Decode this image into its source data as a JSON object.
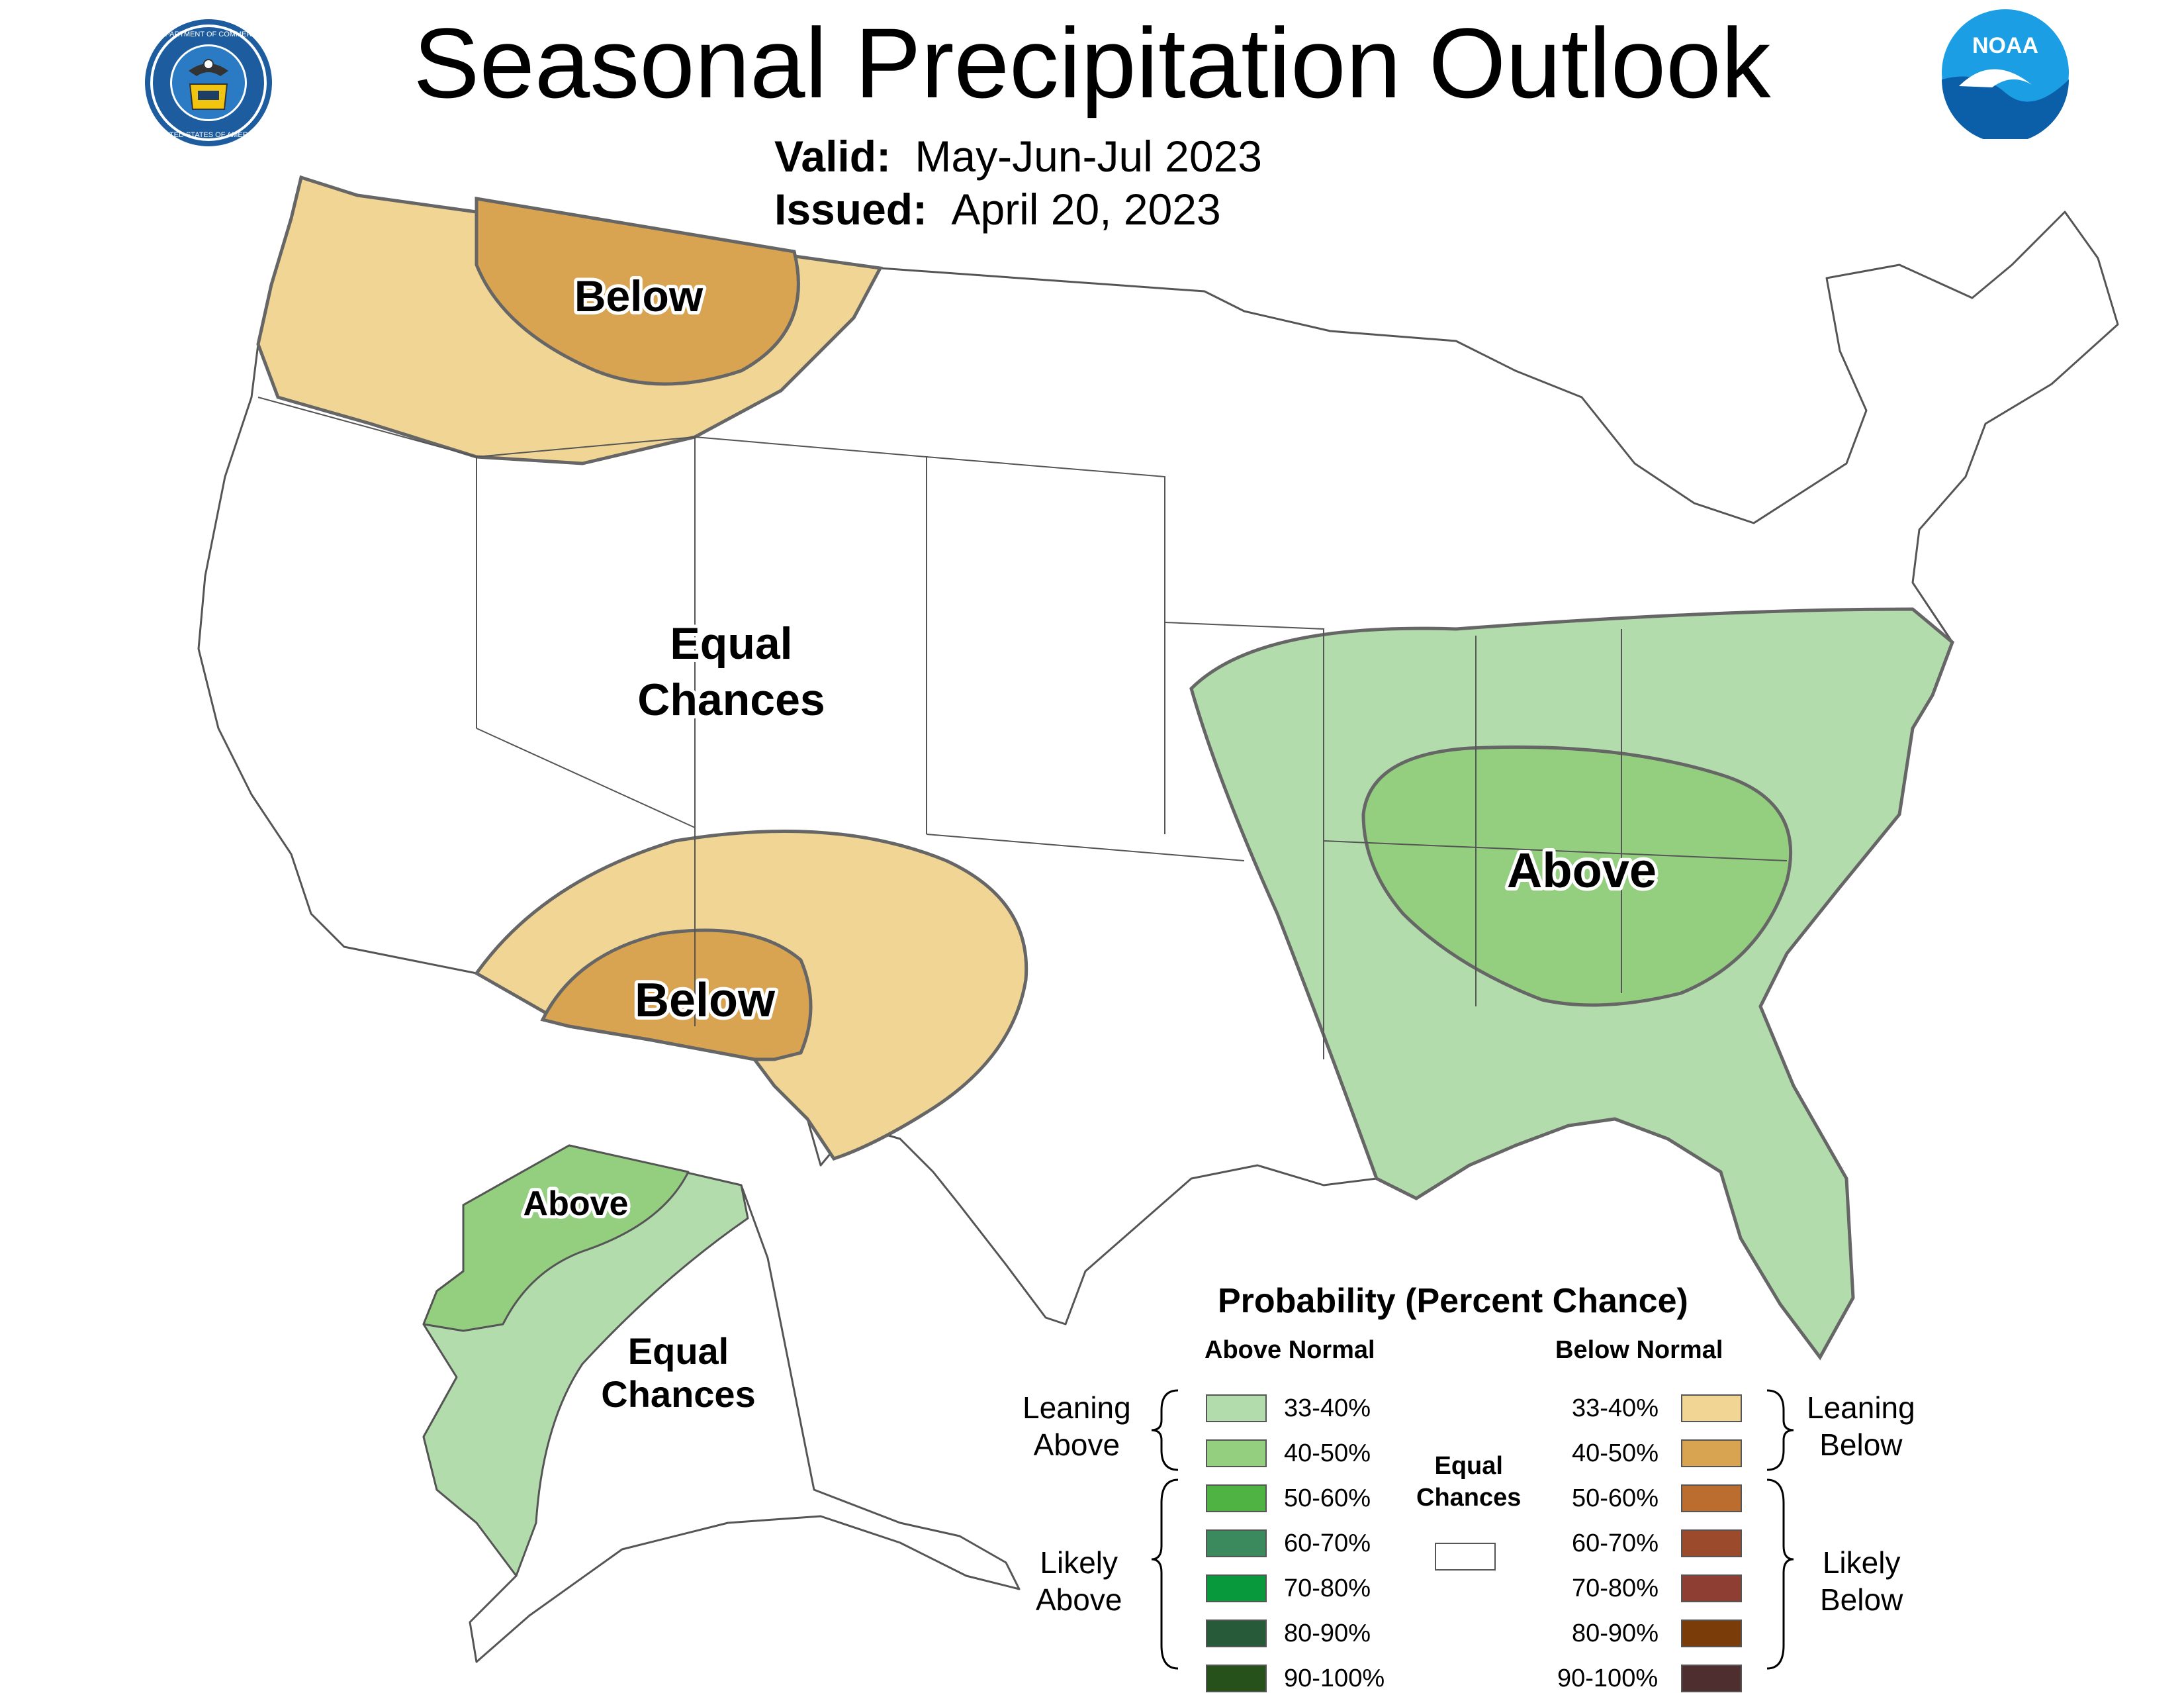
{
  "header": {
    "title": "Seasonal Precipitation Outlook",
    "valid_label": "Valid:",
    "valid_value": "May-Jun-Jul 2023",
    "issued_label": "Issued:",
    "issued_value": "April 20, 2023"
  },
  "logos": {
    "left": "department-of-commerce-seal",
    "left_text": "DEPARTMENT OF COMMERCE · UNITED STATES OF AMERICA",
    "right": "noaa-logo",
    "right_text": "NOAA"
  },
  "map_labels": {
    "nw_below": "Below",
    "sw_below": "Below",
    "ec_line1": "Equal",
    "ec_line2": "Chances",
    "se_above": "Above",
    "ak_above": "Above",
    "ak_ec_line1": "Equal",
    "ak_ec_line2": "Chances"
  },
  "legend": {
    "title": "Probability (Percent Chance)",
    "above_header": "Above Normal",
    "below_header": "Below Normal",
    "equal_line1": "Equal",
    "equal_line2": "Chances",
    "leaning_above_1": "Leaning",
    "leaning_above_2": "Above",
    "likely_above_1": "Likely",
    "likely_above_2": "Above",
    "leaning_below_1": "Leaning",
    "leaning_below_2": "Below",
    "likely_below_1": "Likely",
    "likely_below_2": "Below",
    "above_items": [
      {
        "range": "33-40%",
        "color": "#b3dcad"
      },
      {
        "range": "40-50%",
        "color": "#93cf7f"
      },
      {
        "range": "50-60%",
        "color": "#4fb343"
      },
      {
        "range": "60-70%",
        "color": "#3a8a5e"
      },
      {
        "range": "70-80%",
        "color": "#08993d"
      },
      {
        "range": "80-90%",
        "color": "#275a38"
      },
      {
        "range": "90-100%",
        "color": "#27511a"
      }
    ],
    "below_items": [
      {
        "range": "33-40%",
        "color": "#f0d595"
      },
      {
        "range": "40-50%",
        "color": "#d8a452"
      },
      {
        "range": "50-60%",
        "color": "#bb6d30"
      },
      {
        "range": "60-70%",
        "color": "#9b4a2b"
      },
      {
        "range": "70-80%",
        "color": "#8f3e34"
      },
      {
        "range": "80-90%",
        "color": "#7a3d0a"
      },
      {
        "range": "90-100%",
        "color": "#4e2e2e"
      }
    ],
    "equal_color": "#ffffff"
  }
}
